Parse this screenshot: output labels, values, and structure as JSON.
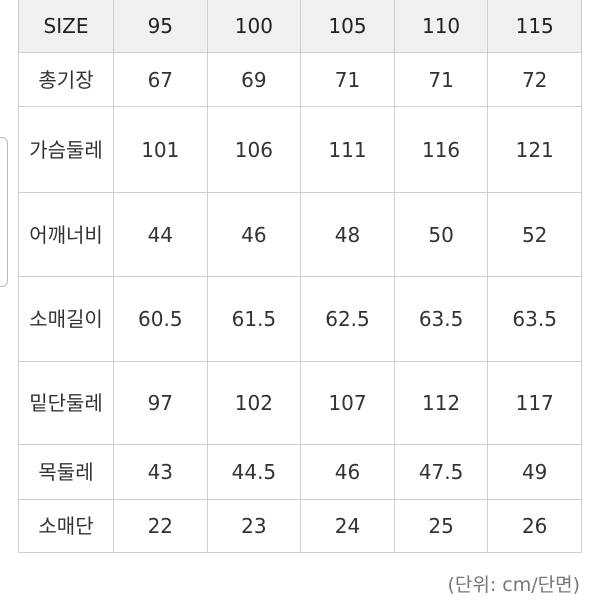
{
  "table": {
    "headers": [
      "SIZE",
      "95",
      "100",
      "105",
      "110",
      "115"
    ],
    "rows": [
      {
        "label": "총기장",
        "values": [
          "67",
          "69",
          "71",
          "71",
          "72"
        ]
      },
      {
        "label": "가슴둘레",
        "values": [
          "101",
          "106",
          "111",
          "116",
          "121"
        ]
      },
      {
        "label": "어깨너비",
        "values": [
          "44",
          "46",
          "48",
          "50",
          "52"
        ]
      },
      {
        "label": "소매길이",
        "values": [
          "60.5",
          "61.5",
          "62.5",
          "63.5",
          "63.5"
        ]
      },
      {
        "label": "밑단둘레",
        "values": [
          "97",
          "102",
          "107",
          "112",
          "117"
        ]
      },
      {
        "label": "목둘레",
        "values": [
          "43",
          "44.5",
          "46",
          "47.5",
          "49"
        ]
      },
      {
        "label": "소매단",
        "values": [
          "22",
          "23",
          "24",
          "25",
          "26"
        ]
      }
    ]
  },
  "unit_note": "(단위: cm/단면)",
  "colors": {
    "header_bg": "#f0f0f0",
    "border": "#cfcfcf",
    "text": "#333333"
  }
}
